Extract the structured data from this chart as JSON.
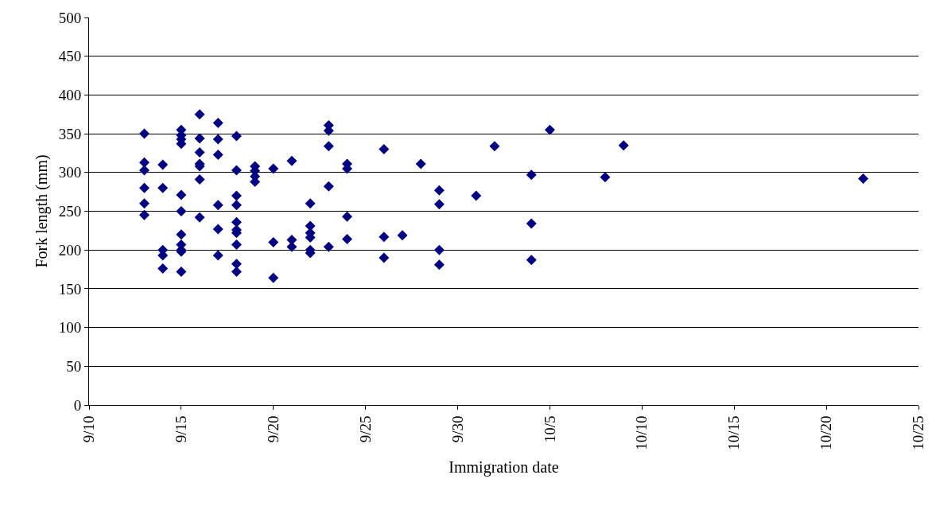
{
  "chart_data": {
    "type": "scatter",
    "xlabel": "Immigration date",
    "ylabel": "Fork length (mm)",
    "x": [
      "--09-13",
      "--09-13",
      "--09-13",
      "--09-13",
      "--09-13",
      "--09-13",
      "--09-14",
      "--09-14",
      "--09-14",
      "--09-14",
      "--09-14",
      "--09-15",
      "--09-15",
      "--09-15",
      "--09-15",
      "--09-15",
      "--09-15",
      "--09-15",
      "--09-15",
      "--09-15",
      "--09-15",
      "--09-15",
      "--09-16",
      "--09-16",
      "--09-16",
      "--09-16",
      "--09-16",
      "--09-16",
      "--09-16",
      "--09-17",
      "--09-17",
      "--09-17",
      "--09-17",
      "--09-17",
      "--09-17",
      "--09-18",
      "--09-18",
      "--09-18",
      "--09-18",
      "--09-18",
      "--09-18",
      "--09-18",
      "--09-18",
      "--09-18",
      "--09-18",
      "--09-19",
      "--09-19",
      "--09-19",
      "--09-19",
      "--09-20",
      "--09-20",
      "--09-20",
      "--09-21",
      "--09-21",
      "--09-21",
      "--09-22",
      "--09-22",
      "--09-22",
      "--09-22",
      "--09-22",
      "--09-22",
      "--09-23",
      "--09-23",
      "--09-23",
      "--09-23",
      "--09-23",
      "--09-24",
      "--09-24",
      "--09-24",
      "--09-24",
      "--09-26",
      "--09-26",
      "--09-26",
      "--09-27",
      "--09-28",
      "--09-29",
      "--09-29",
      "--09-29",
      "--09-29",
      "--10-01",
      "--10-02",
      "--10-04",
      "--10-04",
      "--10-04",
      "--10-05",
      "--10-08",
      "--10-09",
      "--10-22"
    ],
    "values": [
      350,
      313,
      303,
      280,
      260,
      245,
      310,
      280,
      200,
      193,
      176,
      355,
      348,
      343,
      337,
      271,
      250,
      220,
      207,
      200,
      198,
      172,
      375,
      344,
      326,
      311,
      308,
      291,
      242,
      364,
      343,
      323,
      258,
      227,
      193,
      347,
      303,
      270,
      258,
      236,
      226,
      222,
      207,
      182,
      172,
      308,
      302,
      295,
      288,
      305,
      210,
      164,
      315,
      213,
      204,
      260,
      231,
      222,
      216,
      200,
      196,
      361,
      354,
      334,
      282,
      204,
      311,
      305,
      243,
      214,
      330,
      217,
      190,
      219,
      311,
      277,
      259,
      200,
      181,
      270,
      334,
      297,
      234,
      187,
      355,
      294,
      335,
      292
    ],
    "color": "#000080",
    "marker": "diamond",
    "grid": "y",
    "legend": false,
    "xlim": [
      "--09-10",
      "--10-25"
    ],
    "xticks": [
      {
        "value": "--09-10",
        "label": "9/10"
      },
      {
        "value": "--09-15",
        "label": "9/15"
      },
      {
        "value": "--09-20",
        "label": "9/20"
      },
      {
        "value": "--09-25",
        "label": "9/25"
      },
      {
        "value": "--09-30",
        "label": "9/30"
      },
      {
        "value": "--10-05",
        "label": "10/5"
      },
      {
        "value": "--10-10",
        "label": "10/10"
      },
      {
        "value": "--10-15",
        "label": "10/15"
      },
      {
        "value": "--10-20",
        "label": "10/20"
      },
      {
        "value": "--10-25",
        "label": "10/25"
      }
    ],
    "ylim": [
      0,
      500
    ],
    "yticks": [
      0,
      50,
      100,
      150,
      200,
      250,
      300,
      350,
      400,
      450,
      500
    ]
  }
}
